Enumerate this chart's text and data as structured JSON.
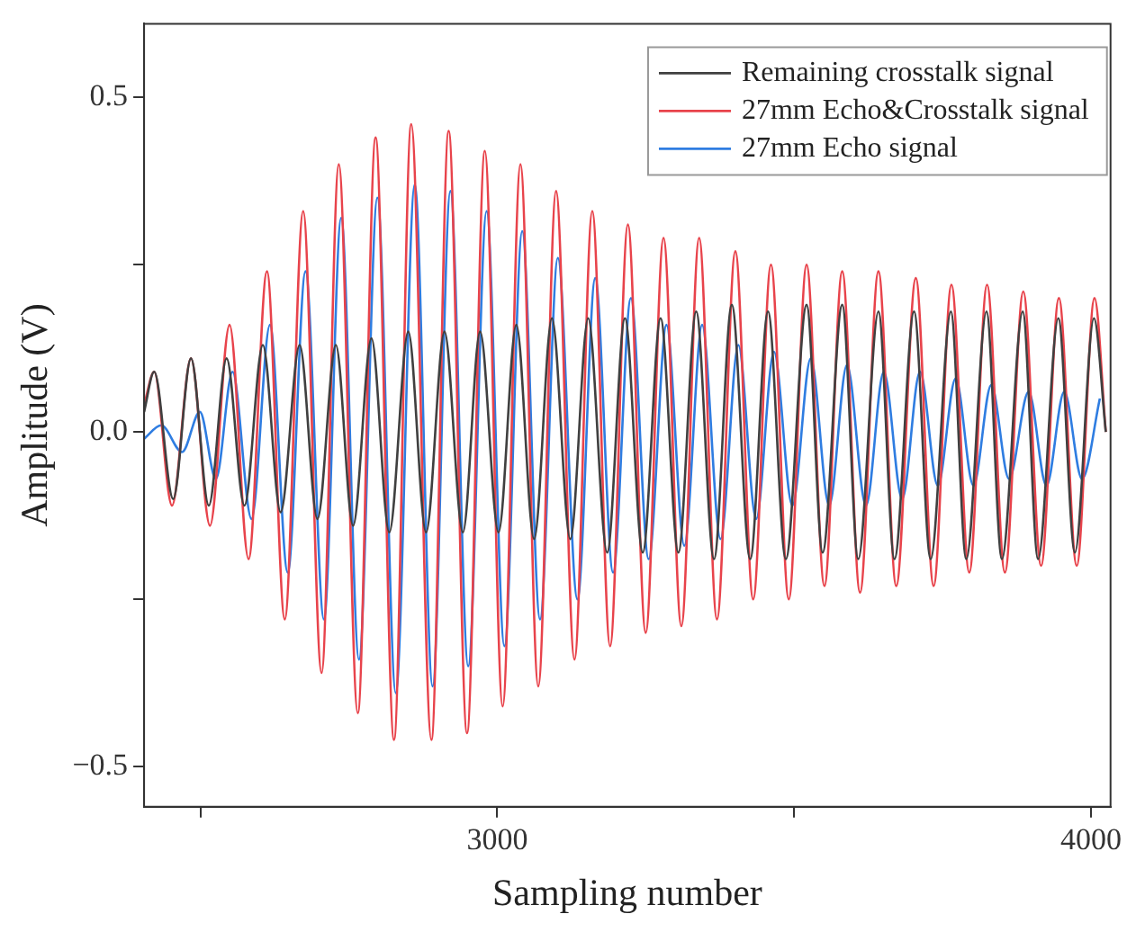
{
  "chart_data": {
    "type": "line",
    "xlabel": "Sampling number",
    "ylabel": "Amplitude (V)",
    "xlim": [
      2405,
      4033
    ],
    "xticks": [
      {
        "value": 2500,
        "label": null
      },
      3000,
      {
        "value": 3500,
        "label": null
      },
      4000
    ],
    "ylim": [
      -0.56,
      0.61
    ],
    "yticks": [
      {
        "value": -0.5,
        "label": "−0.5"
      },
      {
        "value": -0.25,
        "label": null
      },
      {
        "value": 0,
        "label": "0.0"
      },
      {
        "value": 0.25,
        "label": null
      },
      0.5
    ],
    "grid": false,
    "legend": "top right",
    "marker": "none",
    "line_style": "solid",
    "series": [
      {
        "name": "Remaining crosstalk signal",
        "color": "#404040",
        "x": [
          2405,
          2422,
          2454,
          2484,
          2514,
          2544,
          2574,
          2605,
          2635,
          2667,
          2697,
          2728,
          2757,
          2788,
          2818,
          2850,
          2880,
          2911,
          2942,
          2971,
          3002,
          3032,
          3062,
          3092,
          3123,
          3153,
          3185,
          3215,
          3245,
          3275,
          3305,
          3335,
          3365,
          3395,
          3426,
          3456,
          3486,
          3521,
          3548,
          3581,
          3608,
          3642,
          3669,
          3702,
          3730,
          3764,
          3790,
          3824,
          3850,
          3885,
          3911,
          3945,
          3973,
          4005,
          4025
        ],
        "values": [
          0.03,
          0.09,
          -0.1,
          0.11,
          -0.11,
          0.11,
          -0.11,
          0.13,
          -0.12,
          0.13,
          -0.13,
          0.13,
          -0.14,
          0.14,
          -0.15,
          0.15,
          -0.15,
          0.15,
          -0.15,
          0.15,
          -0.15,
          0.16,
          -0.16,
          0.17,
          -0.16,
          0.17,
          -0.18,
          0.17,
          -0.18,
          0.17,
          -0.18,
          0.18,
          -0.19,
          0.19,
          -0.19,
          0.18,
          -0.19,
          0.19,
          -0.18,
          0.19,
          -0.19,
          0.18,
          -0.19,
          0.18,
          -0.19,
          0.18,
          -0.19,
          0.18,
          -0.19,
          0.18,
          -0.19,
          0.17,
          -0.18,
          0.17,
          0
        ]
      },
      {
        "name": "27mm Echo&Crosstalk signal",
        "color": "#e8434b",
        "x": [
          2405,
          2422,
          2452,
          2484,
          2516,
          2549,
          2581,
          2612,
          2642,
          2673,
          2704,
          2733,
          2765,
          2795,
          2826,
          2855,
          2889,
          2918,
          2949,
          2979,
          3009,
          3039,
          3069,
          3099,
          3130,
          3160,
          3190,
          3220,
          3250,
          3280,
          3310,
          3340,
          3370,
          3401,
          3431,
          3461,
          3491,
          3521,
          3551,
          3581,
          3611,
          3642,
          3672,
          3705,
          3735,
          3765,
          3795,
          3825,
          3855,
          3886,
          3916,
          3946,
          3976,
          4006,
          4025
        ],
        "values": [
          0.04,
          0.09,
          -0.11,
          0.11,
          -0.14,
          0.16,
          -0.19,
          0.24,
          -0.28,
          0.33,
          -0.36,
          0.4,
          -0.42,
          0.44,
          -0.46,
          0.46,
          -0.46,
          0.45,
          -0.45,
          0.42,
          -0.41,
          0.4,
          -0.38,
          0.36,
          -0.34,
          0.33,
          -0.32,
          0.31,
          -0.3,
          0.29,
          -0.29,
          0.29,
          -0.28,
          0.27,
          -0.25,
          0.25,
          -0.25,
          0.25,
          -0.23,
          0.24,
          -0.24,
          0.24,
          -0.23,
          0.23,
          -0.23,
          0.22,
          -0.21,
          0.22,
          -0.21,
          0.21,
          -0.2,
          0.2,
          -0.2,
          0.2,
          0
        ]
      },
      {
        "name": "27mm Echo signal",
        "color": "#2f7de1",
        "x": [
          2405,
          2434,
          2469,
          2499,
          2526,
          2554,
          2586,
          2617,
          2647,
          2677,
          2708,
          2737,
          2767,
          2798,
          2829,
          2861,
          2891,
          2921,
          2951,
          2982,
          3012,
          3042,
          3072,
          3102,
          3135,
          3165,
          3195,
          3225,
          3255,
          3285,
          3315,
          3345,
          3376,
          3406,
          3436,
          3466,
          3497,
          3528,
          3559,
          3589,
          3621,
          3651,
          3682,
          3712,
          3742,
          3772,
          3802,
          3832,
          3862,
          3895,
          3925,
          3955,
          3985,
          4015
        ],
        "values": [
          -0.01,
          0.01,
          -0.03,
          0.03,
          -0.07,
          0.09,
          -0.13,
          0.16,
          -0.21,
          0.24,
          -0.28,
          0.32,
          -0.34,
          0.35,
          -0.39,
          0.37,
          -0.38,
          0.36,
          -0.35,
          0.33,
          -0.32,
          0.3,
          -0.28,
          0.26,
          -0.25,
          0.23,
          -0.21,
          0.2,
          -0.19,
          0.16,
          -0.17,
          0.16,
          -0.16,
          0.13,
          -0.13,
          0.12,
          -0.11,
          0.11,
          -0.11,
          0.1,
          -0.11,
          0.09,
          -0.1,
          0.09,
          -0.08,
          0.08,
          -0.08,
          0.07,
          -0.07,
          0.06,
          -0.08,
          0.06,
          -0.07,
          0.05
        ]
      }
    ]
  }
}
